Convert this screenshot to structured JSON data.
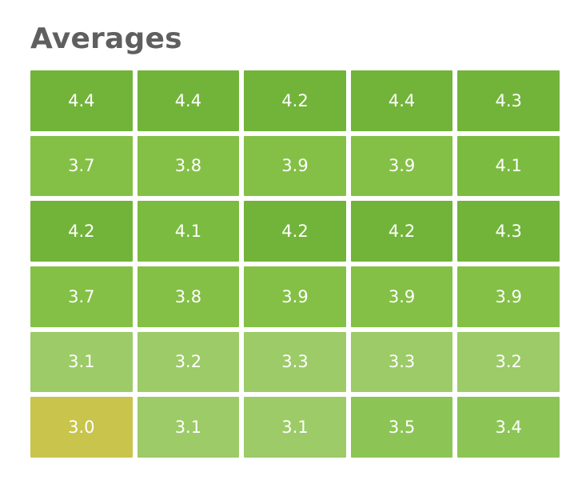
{
  "title": "Averages",
  "colors": {
    "low": "#c8c44c",
    "high": "#72b43a"
  },
  "chart_data": {
    "type": "heatmap",
    "title": "Averages",
    "rows": 6,
    "columns": 5,
    "values": [
      [
        4.4,
        4.4,
        4.2,
        4.4,
        4.3
      ],
      [
        3.7,
        3.8,
        3.9,
        3.9,
        4.1
      ],
      [
        4.2,
        4.1,
        4.2,
        4.2,
        4.3
      ],
      [
        3.7,
        3.8,
        3.9,
        3.9,
        3.9
      ],
      [
        3.1,
        3.2,
        3.3,
        3.3,
        3.2
      ],
      [
        3.0,
        3.1,
        3.1,
        3.5,
        3.4
      ]
    ],
    "labels": [
      [
        "4.4",
        "4.4",
        "4.2",
        "4.4",
        "4.3"
      ],
      [
        "3.7",
        "3.8",
        "3.9",
        "3.9",
        "4.1"
      ],
      [
        "4.2",
        "4.1",
        "4.2",
        "4.2",
        "4.3"
      ],
      [
        "3.7",
        "3.8",
        "3.9",
        "3.9",
        "3.9"
      ],
      [
        "3.1",
        "3.2",
        "3.3",
        "3.3",
        "3.2"
      ],
      [
        "3.0",
        "3.1",
        "3.1",
        "3.5",
        "3.4"
      ]
    ]
  }
}
